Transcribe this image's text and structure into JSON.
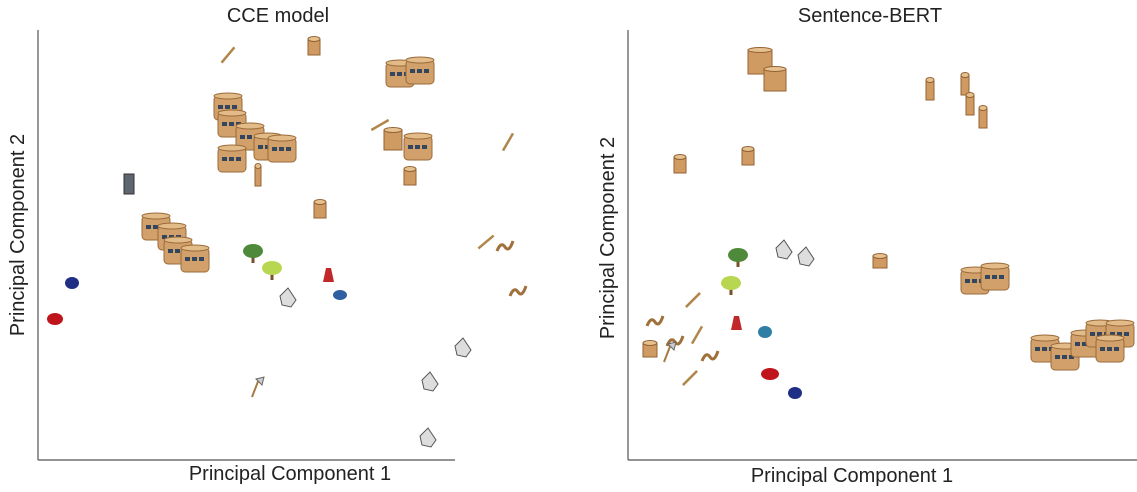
{
  "panels": [
    {
      "title": "CCE model",
      "x_label": "Principal Component 1",
      "y_label": "Principal Component 2"
    },
    {
      "title": "Sentence-BERT",
      "x_label": "Principal Component 1",
      "y_label": "Principal Component 2"
    }
  ]
}
